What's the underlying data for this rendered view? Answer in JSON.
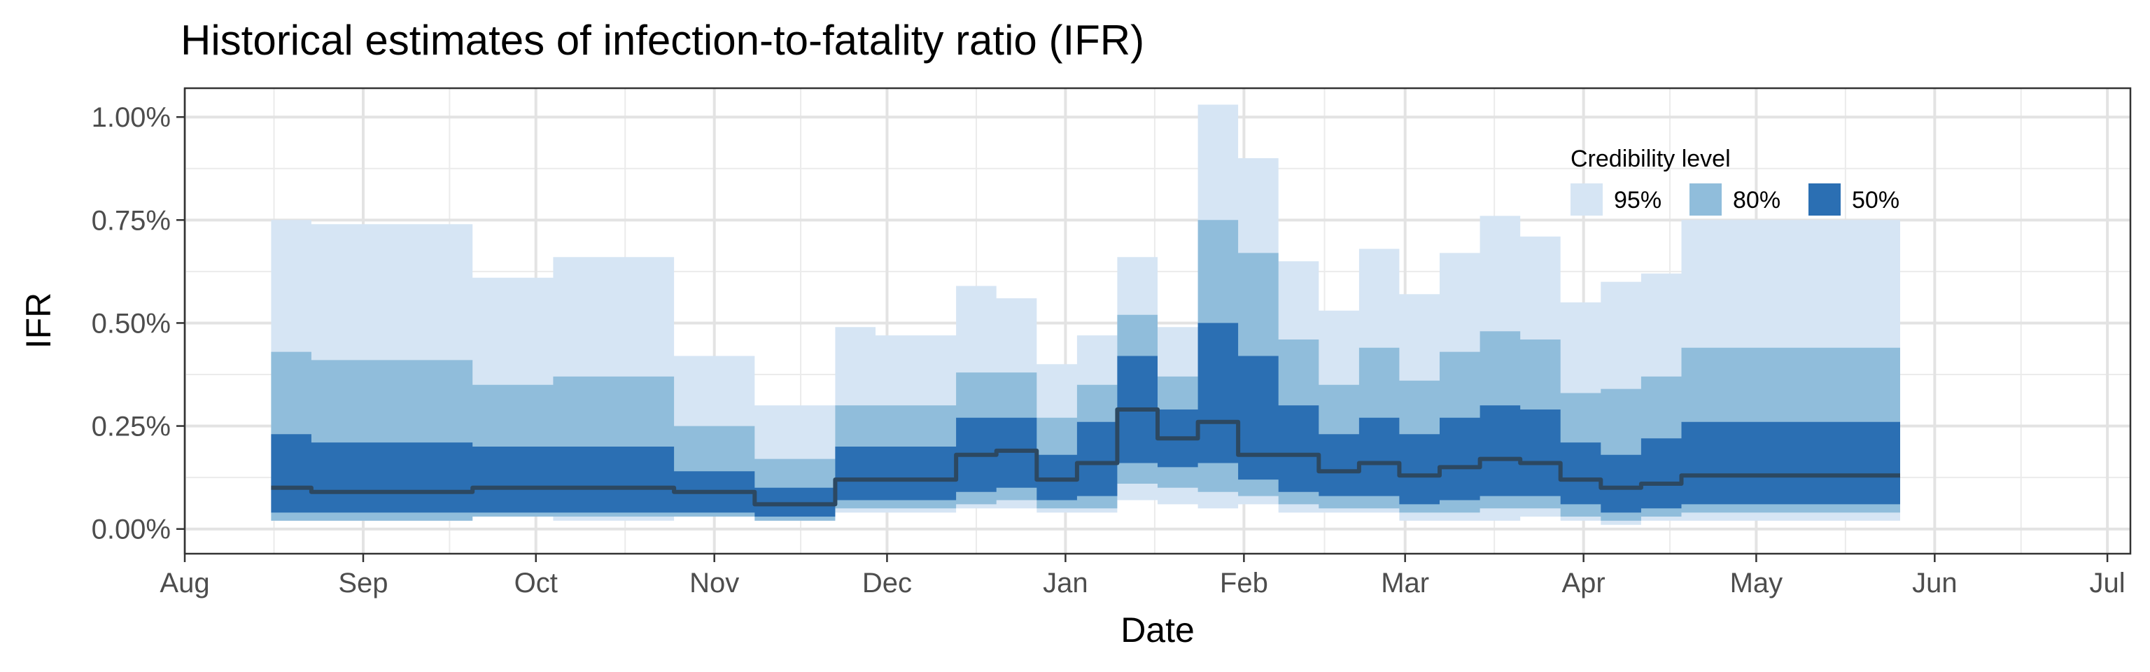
{
  "chart_data": {
    "type": "area",
    "title": "Historical estimates of infection-to-fatality ratio (IFR)",
    "xlabel": "Date",
    "ylabel": "IFR",
    "x_axis": {
      "type": "date",
      "range": [
        "2020-08-01",
        "2021-07-05"
      ],
      "ticks": [
        {
          "date": "2020-08-01",
          "label": "Aug"
        },
        {
          "date": "2020-09-01",
          "label": "Sep"
        },
        {
          "date": "2020-10-01",
          "label": "Oct"
        },
        {
          "date": "2020-11-01",
          "label": "Nov"
        },
        {
          "date": "2020-12-01",
          "label": "Dec"
        },
        {
          "date": "2021-01-01",
          "label": "Jan"
        },
        {
          "date": "2021-02-01",
          "label": "Feb"
        },
        {
          "date": "2021-03-01",
          "label": "Mar"
        },
        {
          "date": "2021-04-01",
          "label": "Apr"
        },
        {
          "date": "2021-05-01",
          "label": "May"
        },
        {
          "date": "2021-06-01",
          "label": "Jun"
        },
        {
          "date": "2021-07-01",
          "label": "Jul"
        }
      ]
    },
    "y_axis": {
      "unit": "%",
      "range": [
        -0.06,
        1.07
      ],
      "ticks": [
        {
          "value": 0,
          "label": "0.00%"
        },
        {
          "value": 0.25,
          "label": "0.25%"
        },
        {
          "value": 0.5,
          "label": "0.50%"
        },
        {
          "value": 0.75,
          "label": "0.75%"
        },
        {
          "value": 1.0,
          "label": "1.00%"
        }
      ]
    },
    "grid": true,
    "legend": {
      "title": "Credibility level",
      "position": "top-right inside",
      "entries": [
        {
          "label": "95%",
          "color": "#d6e5f4"
        },
        {
          "label": "80%",
          "color": "#90bddb"
        },
        {
          "label": "50%",
          "color": "#2b6fb3"
        }
      ]
    },
    "median_color": "#2c4861",
    "x": [
      "2020-08-16",
      "2020-08-23",
      "2020-09-06",
      "2020-09-20",
      "2020-10-04",
      "2020-10-25",
      "2020-11-08",
      "2020-11-22",
      "2020-11-29",
      "2020-12-13",
      "2020-12-20",
      "2020-12-27",
      "2021-01-03",
      "2021-01-10",
      "2021-01-17",
      "2021-01-24",
      "2021-01-31",
      "2021-02-07",
      "2021-02-14",
      "2021-02-21",
      "2021-02-28",
      "2021-03-07",
      "2021-03-14",
      "2021-03-21",
      "2021-03-28",
      "2021-04-04",
      "2021-04-11",
      "2021-04-18",
      "2021-04-25",
      "2021-05-26"
    ],
    "series": [
      {
        "name": "95%",
        "lower": [
          0.02,
          0.02,
          0.02,
          0.03,
          0.02,
          0.03,
          0.02,
          0.04,
          0.04,
          0.05,
          0.05,
          0.04,
          0.04,
          0.07,
          0.06,
          0.05,
          0.06,
          0.04,
          0.04,
          0.04,
          0.02,
          0.02,
          0.02,
          0.03,
          0.02,
          0.01,
          0.02,
          0.02,
          0.02,
          0.02
        ],
        "upper": [
          0.75,
          0.74,
          0.74,
          0.61,
          0.66,
          0.42,
          0.3,
          0.49,
          0.47,
          0.59,
          0.56,
          0.4,
          0.47,
          0.66,
          0.49,
          1.03,
          0.9,
          0.65,
          0.53,
          0.68,
          0.57,
          0.67,
          0.76,
          0.71,
          0.55,
          0.6,
          0.62,
          0.75,
          0.75,
          0.75
        ]
      },
      {
        "name": "80%",
        "lower": [
          0.02,
          0.02,
          0.02,
          0.03,
          0.03,
          0.03,
          0.02,
          0.05,
          0.05,
          0.06,
          0.07,
          0.05,
          0.05,
          0.11,
          0.1,
          0.09,
          0.08,
          0.06,
          0.05,
          0.05,
          0.04,
          0.04,
          0.05,
          0.05,
          0.03,
          0.02,
          0.03,
          0.04,
          0.04,
          0.04
        ],
        "upper": [
          0.43,
          0.41,
          0.41,
          0.35,
          0.37,
          0.25,
          0.17,
          0.3,
          0.3,
          0.38,
          0.38,
          0.27,
          0.35,
          0.52,
          0.37,
          0.75,
          0.67,
          0.46,
          0.35,
          0.44,
          0.36,
          0.43,
          0.48,
          0.46,
          0.33,
          0.34,
          0.37,
          0.44,
          0.44,
          0.44
        ]
      },
      {
        "name": "50%",
        "lower": [
          0.04,
          0.04,
          0.04,
          0.04,
          0.04,
          0.04,
          0.03,
          0.07,
          0.07,
          0.09,
          0.1,
          0.07,
          0.08,
          0.16,
          0.15,
          0.16,
          0.12,
          0.09,
          0.08,
          0.08,
          0.06,
          0.07,
          0.08,
          0.08,
          0.06,
          0.04,
          0.05,
          0.06,
          0.06,
          0.06
        ],
        "upper": [
          0.23,
          0.21,
          0.21,
          0.2,
          0.2,
          0.14,
          0.1,
          0.2,
          0.2,
          0.27,
          0.27,
          0.18,
          0.26,
          0.42,
          0.29,
          0.5,
          0.42,
          0.3,
          0.23,
          0.27,
          0.23,
          0.27,
          0.3,
          0.29,
          0.21,
          0.18,
          0.22,
          0.26,
          0.26,
          0.26
        ]
      },
      {
        "name": "median",
        "values": [
          0.1,
          0.09,
          0.09,
          0.1,
          0.1,
          0.09,
          0.06,
          0.12,
          0.12,
          0.18,
          0.19,
          0.12,
          0.16,
          0.29,
          0.22,
          0.26,
          0.18,
          0.18,
          0.14,
          0.16,
          0.13,
          0.15,
          0.17,
          0.16,
          0.12,
          0.1,
          0.11,
          0.13,
          0.13,
          0.13
        ]
      }
    ]
  }
}
